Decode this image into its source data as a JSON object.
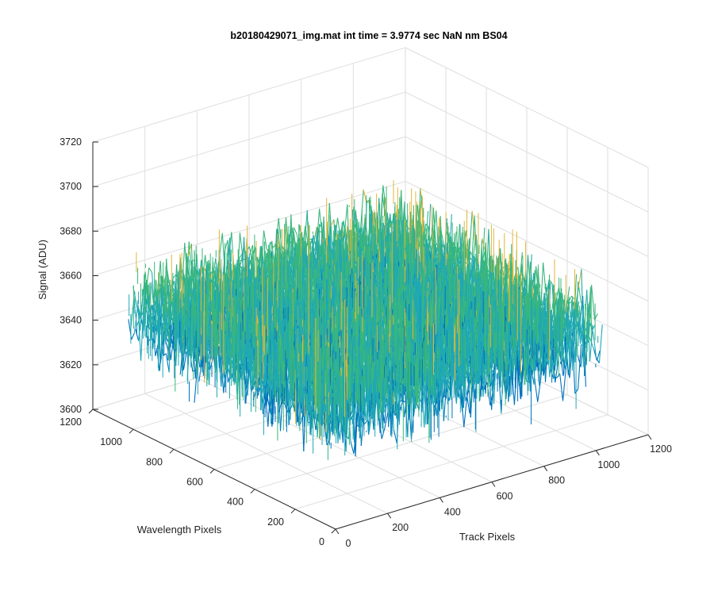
{
  "chart_data": {
    "type": "surface",
    "title": "b20180429071_img.mat int time = 3.9774 sec  NaN nm BS04",
    "xlabel": "Track Pixels",
    "ylabel": "Wavelength Pixels",
    "zlabel": "Signal (ADU)",
    "xlim": [
      0,
      1200
    ],
    "ylim": [
      0,
      1200
    ],
    "zlim": [
      3600,
      3720
    ],
    "x_ticks": [
      "0",
      "200",
      "400",
      "600",
      "800",
      "1000",
      "1200"
    ],
    "y_ticks": [
      "0",
      "200",
      "400",
      "600",
      "800",
      "1000",
      "1200"
    ],
    "z_ticks": [
      "3600",
      "3620",
      "3640",
      "3660",
      "3680",
      "3700",
      "3720"
    ],
    "surface": {
      "x_range": [
        0,
        1024
      ],
      "y_range": [
        0,
        1024
      ],
      "z_mean": 3652,
      "z_min": 3615,
      "z_max": 3705,
      "colormap": "parula"
    },
    "colors": {
      "low": "#0072bd",
      "mid": "#1fa8b5",
      "midhigh": "#3ab77b",
      "high": "#e1b63a"
    },
    "grid": true,
    "view": "3-D, azimuth -37.5°, elevation 30°"
  }
}
